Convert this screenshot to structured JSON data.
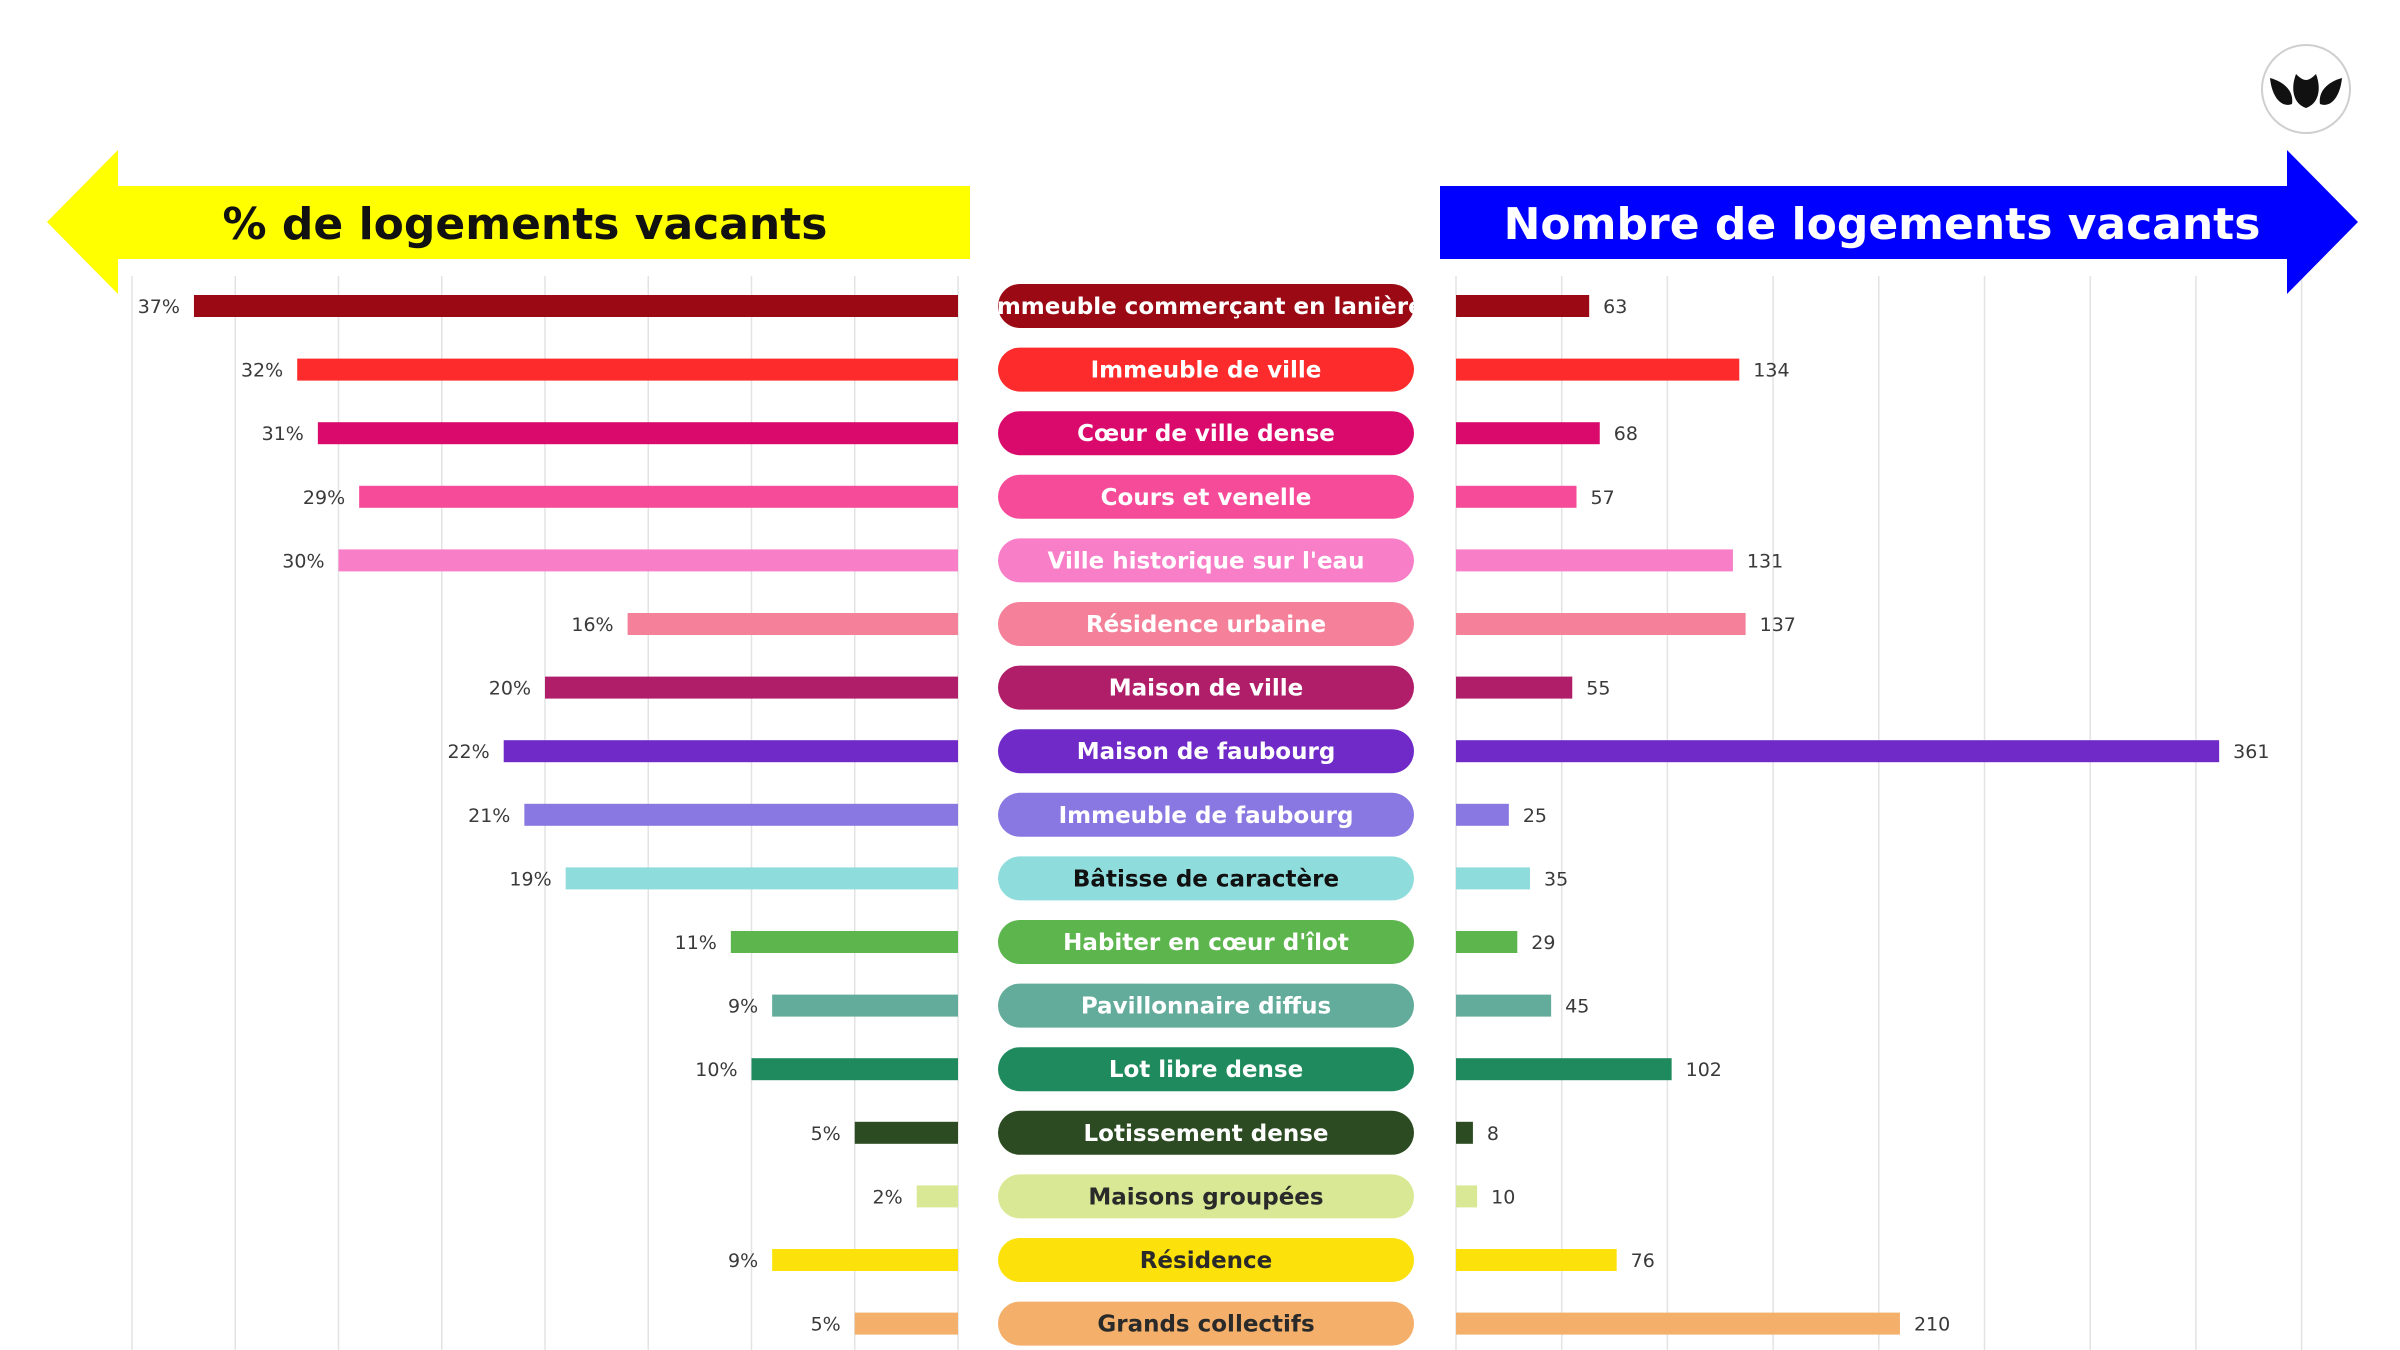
{
  "chart_data": {
    "type": "bar",
    "left_title": "% de logements vacants",
    "right_title": "Nombre de logements vacants",
    "left_color": "#ffff00",
    "right_color": "#0000ff",
    "left_xlim": [
      0,
      40
    ],
    "right_xlim": [
      0,
      400
    ],
    "categories": [
      "Immeuble commerçant en lanière",
      "Immeuble de ville",
      "Cœur de ville dense",
      "Cours et venelle",
      "Ville historique sur l'eau",
      "Résidence urbaine",
      "Maison de ville",
      "Maison de faubourg",
      "Immeuble de faubourg",
      "Bâtisse de caractère",
      "Habiter en cœur d'îlot",
      "Pavillonnaire diffus",
      "Lot libre dense",
      "Lotissement dense",
      "Maisons groupées",
      "Résidence",
      "Grands collectifs"
    ],
    "series": [
      {
        "values": [
          37,
          32,
          31,
          29,
          30,
          16,
          20,
          22,
          21,
          19,
          11,
          9,
          10,
          5,
          2,
          9,
          5
        ]
      },
      {
        "values": [
          63,
          134,
          68,
          57,
          131,
          137,
          55,
          361,
          25,
          35,
          29,
          45,
          102,
          8,
          10,
          76,
          210
        ]
      }
    ],
    "left_labels": [
      "37%",
      "32%",
      "31%",
      "29%",
      "30%",
      "16%",
      "20%",
      "22%",
      "21%",
      "19%",
      "11%",
      "9%",
      "10%",
      "5%",
      "2%",
      "9%",
      "5%"
    ],
    "colors": [
      "#9b0a14",
      "#fd2b2b",
      "#d90a6b",
      "#f64b99",
      "#f87ec7",
      "#f48199",
      "#b01e6a",
      "#6f2ac8",
      "#8a78e2",
      "#8fdcdc",
      "#5db54e",
      "#63ab9a",
      "#1f8a5e",
      "#2c4b22",
      "#d9e894",
      "#fce10a",
      "#f4b06b"
    ],
    "label_text_colors": [
      "#ffffff",
      "#ffffff",
      "#ffffff",
      "#ffffff",
      "#ffffff",
      "#ffffff",
      "#ffffff",
      "#ffffff",
      "#ffffff",
      "#111111",
      "#ffffff",
      "#ffffff",
      "#ffffff",
      "#ffffff",
      "#2a2a2a",
      "#2a2a2a",
      "#2a2a2a"
    ],
    "grid": true
  },
  "logo": {
    "icon": "leaf-logo-icon"
  }
}
